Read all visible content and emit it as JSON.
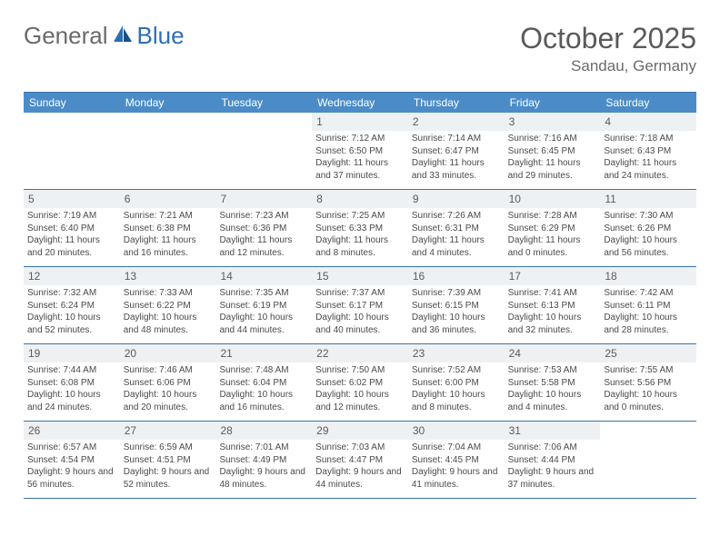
{
  "logo": {
    "general": "General",
    "blue": "Blue"
  },
  "title": "October 2025",
  "location": "Sandau, Germany",
  "colors": {
    "header_bg": "#4b8cc8",
    "header_text": "#ffffff",
    "border": "#3a72a8",
    "daynum_bg": "#eef1f4",
    "text": "#4a4a4a",
    "title_text": "#5a5a5a",
    "logo_gray": "#6a6a6a",
    "logo_blue": "#2c6fb5"
  },
  "typography": {
    "title_fontsize": 32,
    "location_fontsize": 17,
    "dayheader_fontsize": 12,
    "daynum_fontsize": 12,
    "body_fontsize": 10
  },
  "dayHeaders": [
    "Sunday",
    "Monday",
    "Tuesday",
    "Wednesday",
    "Thursday",
    "Friday",
    "Saturday"
  ],
  "weeks": [
    [
      {
        "empty": true
      },
      {
        "empty": true
      },
      {
        "empty": true
      },
      {
        "num": "1",
        "sunrise": "Sunrise: 7:12 AM",
        "sunset": "Sunset: 6:50 PM",
        "daylight": "Daylight: 11 hours and 37 minutes."
      },
      {
        "num": "2",
        "sunrise": "Sunrise: 7:14 AM",
        "sunset": "Sunset: 6:47 PM",
        "daylight": "Daylight: 11 hours and 33 minutes."
      },
      {
        "num": "3",
        "sunrise": "Sunrise: 7:16 AM",
        "sunset": "Sunset: 6:45 PM",
        "daylight": "Daylight: 11 hours and 29 minutes."
      },
      {
        "num": "4",
        "sunrise": "Sunrise: 7:18 AM",
        "sunset": "Sunset: 6:43 PM",
        "daylight": "Daylight: 11 hours and 24 minutes."
      }
    ],
    [
      {
        "num": "5",
        "sunrise": "Sunrise: 7:19 AM",
        "sunset": "Sunset: 6:40 PM",
        "daylight": "Daylight: 11 hours and 20 minutes."
      },
      {
        "num": "6",
        "sunrise": "Sunrise: 7:21 AM",
        "sunset": "Sunset: 6:38 PM",
        "daylight": "Daylight: 11 hours and 16 minutes."
      },
      {
        "num": "7",
        "sunrise": "Sunrise: 7:23 AM",
        "sunset": "Sunset: 6:36 PM",
        "daylight": "Daylight: 11 hours and 12 minutes."
      },
      {
        "num": "8",
        "sunrise": "Sunrise: 7:25 AM",
        "sunset": "Sunset: 6:33 PM",
        "daylight": "Daylight: 11 hours and 8 minutes."
      },
      {
        "num": "9",
        "sunrise": "Sunrise: 7:26 AM",
        "sunset": "Sunset: 6:31 PM",
        "daylight": "Daylight: 11 hours and 4 minutes."
      },
      {
        "num": "10",
        "sunrise": "Sunrise: 7:28 AM",
        "sunset": "Sunset: 6:29 PM",
        "daylight": "Daylight: 11 hours and 0 minutes."
      },
      {
        "num": "11",
        "sunrise": "Sunrise: 7:30 AM",
        "sunset": "Sunset: 6:26 PM",
        "daylight": "Daylight: 10 hours and 56 minutes."
      }
    ],
    [
      {
        "num": "12",
        "sunrise": "Sunrise: 7:32 AM",
        "sunset": "Sunset: 6:24 PM",
        "daylight": "Daylight: 10 hours and 52 minutes."
      },
      {
        "num": "13",
        "sunrise": "Sunrise: 7:33 AM",
        "sunset": "Sunset: 6:22 PM",
        "daylight": "Daylight: 10 hours and 48 minutes."
      },
      {
        "num": "14",
        "sunrise": "Sunrise: 7:35 AM",
        "sunset": "Sunset: 6:19 PM",
        "daylight": "Daylight: 10 hours and 44 minutes."
      },
      {
        "num": "15",
        "sunrise": "Sunrise: 7:37 AM",
        "sunset": "Sunset: 6:17 PM",
        "daylight": "Daylight: 10 hours and 40 minutes."
      },
      {
        "num": "16",
        "sunrise": "Sunrise: 7:39 AM",
        "sunset": "Sunset: 6:15 PM",
        "daylight": "Daylight: 10 hours and 36 minutes."
      },
      {
        "num": "17",
        "sunrise": "Sunrise: 7:41 AM",
        "sunset": "Sunset: 6:13 PM",
        "daylight": "Daylight: 10 hours and 32 minutes."
      },
      {
        "num": "18",
        "sunrise": "Sunrise: 7:42 AM",
        "sunset": "Sunset: 6:11 PM",
        "daylight": "Daylight: 10 hours and 28 minutes."
      }
    ],
    [
      {
        "num": "19",
        "sunrise": "Sunrise: 7:44 AM",
        "sunset": "Sunset: 6:08 PM",
        "daylight": "Daylight: 10 hours and 24 minutes."
      },
      {
        "num": "20",
        "sunrise": "Sunrise: 7:46 AM",
        "sunset": "Sunset: 6:06 PM",
        "daylight": "Daylight: 10 hours and 20 minutes."
      },
      {
        "num": "21",
        "sunrise": "Sunrise: 7:48 AM",
        "sunset": "Sunset: 6:04 PM",
        "daylight": "Daylight: 10 hours and 16 minutes."
      },
      {
        "num": "22",
        "sunrise": "Sunrise: 7:50 AM",
        "sunset": "Sunset: 6:02 PM",
        "daylight": "Daylight: 10 hours and 12 minutes."
      },
      {
        "num": "23",
        "sunrise": "Sunrise: 7:52 AM",
        "sunset": "Sunset: 6:00 PM",
        "daylight": "Daylight: 10 hours and 8 minutes."
      },
      {
        "num": "24",
        "sunrise": "Sunrise: 7:53 AM",
        "sunset": "Sunset: 5:58 PM",
        "daylight": "Daylight: 10 hours and 4 minutes."
      },
      {
        "num": "25",
        "sunrise": "Sunrise: 7:55 AM",
        "sunset": "Sunset: 5:56 PM",
        "daylight": "Daylight: 10 hours and 0 minutes."
      }
    ],
    [
      {
        "num": "26",
        "sunrise": "Sunrise: 6:57 AM",
        "sunset": "Sunset: 4:54 PM",
        "daylight": "Daylight: 9 hours and 56 minutes."
      },
      {
        "num": "27",
        "sunrise": "Sunrise: 6:59 AM",
        "sunset": "Sunset: 4:51 PM",
        "daylight": "Daylight: 9 hours and 52 minutes."
      },
      {
        "num": "28",
        "sunrise": "Sunrise: 7:01 AM",
        "sunset": "Sunset: 4:49 PM",
        "daylight": "Daylight: 9 hours and 48 minutes."
      },
      {
        "num": "29",
        "sunrise": "Sunrise: 7:03 AM",
        "sunset": "Sunset: 4:47 PM",
        "daylight": "Daylight: 9 hours and 44 minutes."
      },
      {
        "num": "30",
        "sunrise": "Sunrise: 7:04 AM",
        "sunset": "Sunset: 4:45 PM",
        "daylight": "Daylight: 9 hours and 41 minutes."
      },
      {
        "num": "31",
        "sunrise": "Sunrise: 7:06 AM",
        "sunset": "Sunset: 4:44 PM",
        "daylight": "Daylight: 9 hours and 37 minutes."
      },
      {
        "empty": true
      }
    ]
  ]
}
